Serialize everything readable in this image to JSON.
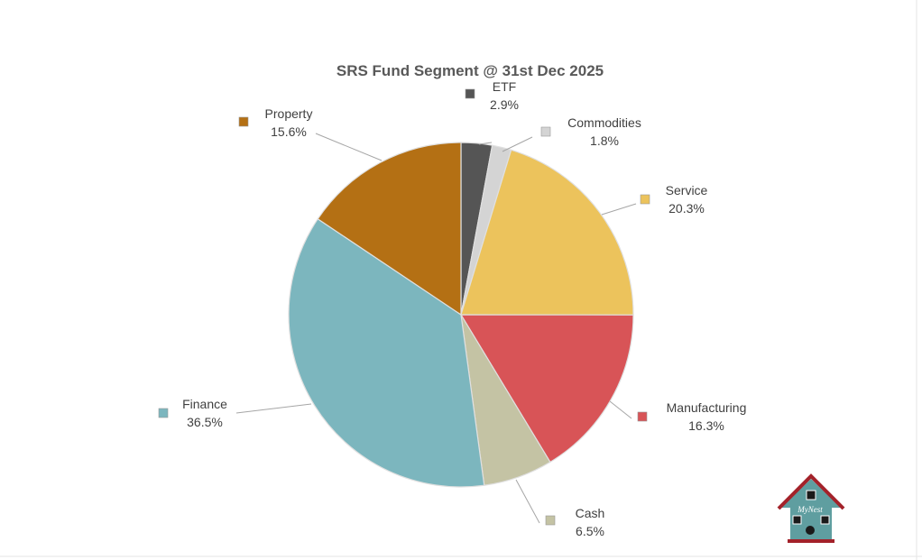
{
  "chart_data": {
    "type": "pie",
    "title": "SRS Fund Segment @ 31st Dec 2025",
    "slices": [
      {
        "name": "ETF",
        "value": 2.9,
        "label": "2.9%",
        "color": "#555555"
      },
      {
        "name": "Commodities",
        "value": 1.8,
        "label": "1.8%",
        "color": "#d4d4d4"
      },
      {
        "name": "Service",
        "value": 20.3,
        "label": "20.3%",
        "color": "#ecc35c"
      },
      {
        "name": "Manufacturing",
        "value": 16.3,
        "label": "16.3%",
        "color": "#d85457"
      },
      {
        "name": "Cash",
        "value": 6.5,
        "label": "6.5%",
        "color": "#c4c3a4"
      },
      {
        "name": "Finance",
        "value": 36.5,
        "label": "36.5%",
        "color": "#7cb6be"
      },
      {
        "name": "Property",
        "value": 15.6,
        "label": "15.6%",
        "color": "#b47014"
      }
    ]
  },
  "logo": {
    "text": "MyNest",
    "roof_color": "#a3222a",
    "body_color": "#5f9ea0"
  }
}
